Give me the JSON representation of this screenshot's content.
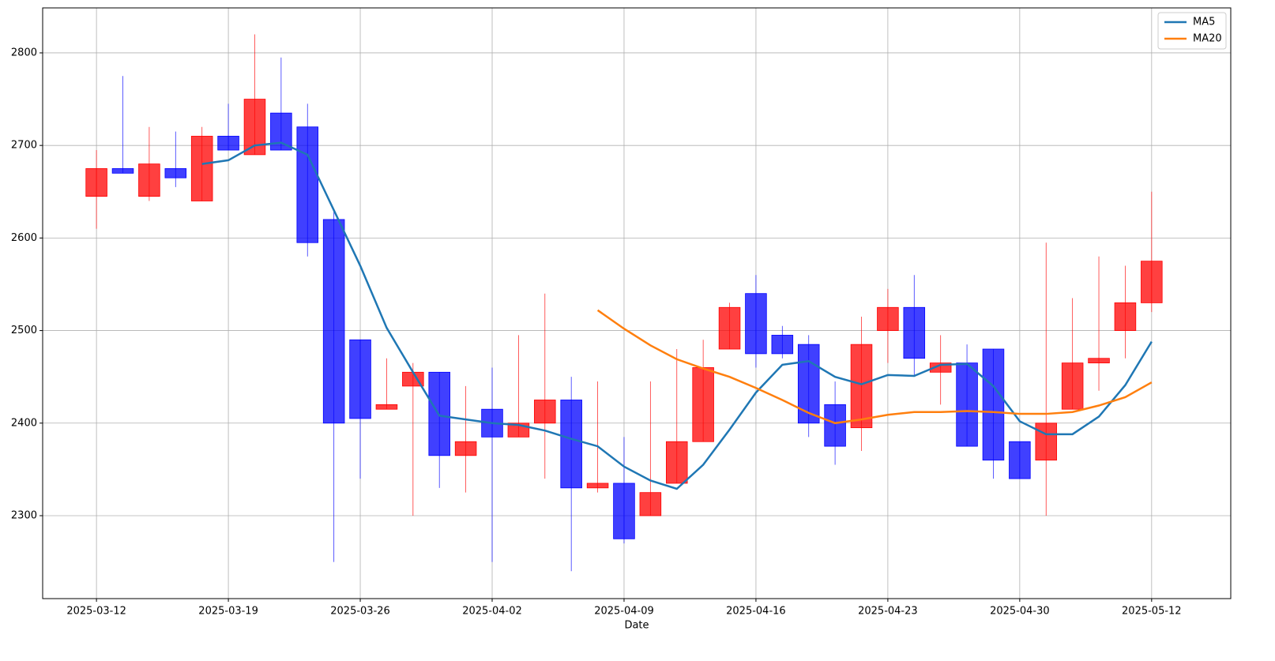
{
  "chart_data": {
    "type": "candlestick",
    "x_label": "Date",
    "categories": [
      "2025-03-12",
      null,
      null,
      null,
      null,
      "2025-03-19",
      null,
      null,
      null,
      null,
      "2025-03-26",
      null,
      null,
      null,
      null,
      "2025-04-02",
      null,
      null,
      null,
      null,
      "2025-04-09",
      null,
      null,
      null,
      null,
      "2025-04-16",
      null,
      null,
      null,
      null,
      "2025-04-23",
      null,
      null,
      null,
      null,
      "2025-04-30",
      null,
      null,
      null,
      null,
      "2025-05-12"
    ],
    "candles": {
      "up_color": "#ff0000",
      "down_color": "#0000ff",
      "open": [
        2645,
        2675,
        2645,
        2675,
        2640,
        2710,
        2690,
        2735,
        2720,
        2620,
        2490,
        2415,
        2440,
        2455,
        2365,
        2415,
        2385,
        2400,
        2425,
        2330,
        2335,
        2300,
        2335,
        2380,
        2480,
        2540,
        2495,
        2485,
        2420,
        2395,
        2500,
        2525,
        2455,
        2465,
        2480,
        2380,
        2360,
        2415,
        2465,
        2500,
        2530
      ],
      "high": [
        2695,
        2775,
        2720,
        2715,
        2720,
        2745,
        2820,
        2795,
        2745,
        2630,
        2490,
        2470,
        2465,
        2455,
        2440,
        2460,
        2495,
        2540,
        2450,
        2445,
        2385,
        2445,
        2480,
        2490,
        2530,
        2560,
        2505,
        2495,
        2445,
        2515,
        2545,
        2560,
        2495,
        2485,
        2480,
        2380,
        2595,
        2535,
        2580,
        2570,
        2650
      ],
      "low": [
        2610,
        2670,
        2640,
        2655,
        2640,
        2695,
        2690,
        2695,
        2580,
        2250,
        2340,
        2415,
        2300,
        2330,
        2325,
        2250,
        2385,
        2340,
        2240,
        2325,
        2270,
        2300,
        2335,
        2380,
        2480,
        2460,
        2470,
        2385,
        2355,
        2370,
        2465,
        2450,
        2420,
        2375,
        2340,
        2340,
        2300,
        2415,
        2435,
        2470,
        2520
      ],
      "close": [
        2675,
        2670,
        2680,
        2665,
        2710,
        2695,
        2750,
        2695,
        2595,
        2400,
        2405,
        2420,
        2455,
        2365,
        2380,
        2385,
        2400,
        2425,
        2330,
        2335,
        2275,
        2325,
        2380,
        2460,
        2525,
        2475,
        2475,
        2400,
        2375,
        2485,
        2525,
        2470,
        2465,
        2375,
        2360,
        2340,
        2400,
        2465,
        2470,
        2530,
        2575
      ]
    },
    "series": [
      {
        "name": "MA5",
        "color": "#1f77b4",
        "values": [
          null,
          null,
          null,
          null,
          2680,
          2684,
          2700,
          2703,
          2690,
          2630,
          2570,
          2503,
          2455,
          2408,
          2404,
          2400,
          2398,
          2392,
          2383,
          2375,
          2353,
          2338,
          2329,
          2355,
          2393,
          2433,
          2463,
          2467,
          2450,
          2442,
          2452,
          2451,
          2463,
          2464,
          2440,
          2402,
          2388,
          2388,
          2407,
          2441,
          2488
        ]
      },
      {
        "name": "MA20",
        "color": "#ff7f0e",
        "values": [
          null,
          null,
          null,
          null,
          null,
          null,
          null,
          null,
          null,
          null,
          null,
          null,
          null,
          null,
          null,
          null,
          null,
          null,
          null,
          2522,
          2502,
          2484,
          2469,
          2459,
          2450,
          2438,
          2425,
          2411,
          2400,
          2404,
          2409,
          2412,
          2412,
          2413,
          2412,
          2410,
          2410,
          2412,
          2419,
          2428,
          2444
        ]
      }
    ],
    "xlim": [
      -2.04,
      43.0
    ],
    "ylim": [
      2210.4,
      2848.6
    ],
    "yticks": [
      2300,
      2400,
      2500,
      2600,
      2700,
      2800
    ],
    "grid": true,
    "legend": "upper right"
  }
}
